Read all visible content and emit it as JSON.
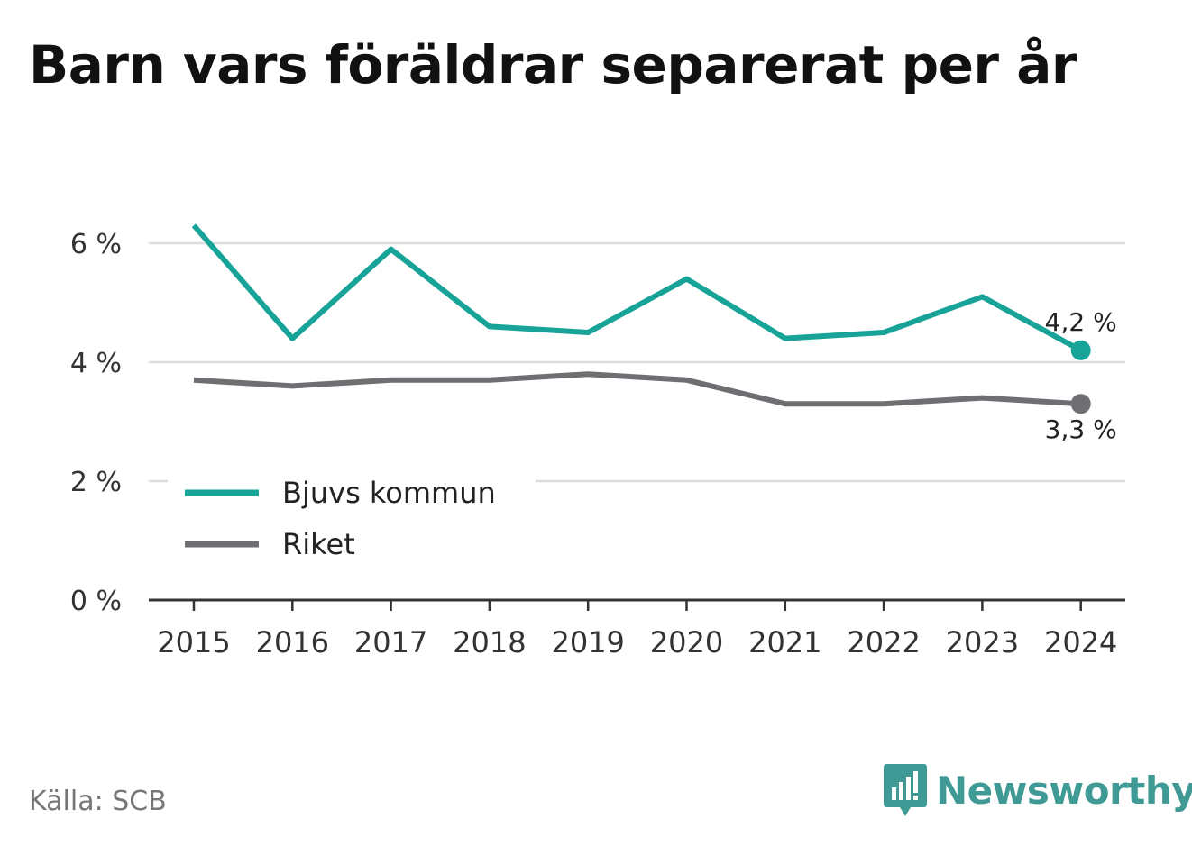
{
  "title": "Barn vars föräldrar separerat per år",
  "source": "Källa: SCB",
  "brand": {
    "name": "Newsworthy",
    "icon": "newsworthy-logo-icon",
    "color": "#3f9a95"
  },
  "chart_data": {
    "type": "line",
    "x": [
      "2015",
      "2016",
      "2017",
      "2018",
      "2019",
      "2020",
      "2021",
      "2022",
      "2023",
      "2024"
    ],
    "series": [
      {
        "name": "Bjuvs kommun",
        "color": "#17a398",
        "values": [
          6.3,
          4.4,
          5.9,
          4.6,
          4.5,
          5.4,
          4.4,
          4.5,
          5.1,
          4.2
        ],
        "end_label": "4,2 %"
      },
      {
        "name": "Riket",
        "color": "#6e6e73",
        "values": [
          3.7,
          3.6,
          3.7,
          3.7,
          3.8,
          3.7,
          3.3,
          3.3,
          3.4,
          3.3
        ],
        "end_label": "3,3 %"
      }
    ],
    "yticks": [
      0,
      2,
      4,
      6
    ],
    "ytick_labels": [
      "0 %",
      "2 %",
      "4 %",
      "6 %"
    ],
    "ylim": [
      0,
      6
    ],
    "grid": true,
    "legend": "inside-lower-left"
  }
}
